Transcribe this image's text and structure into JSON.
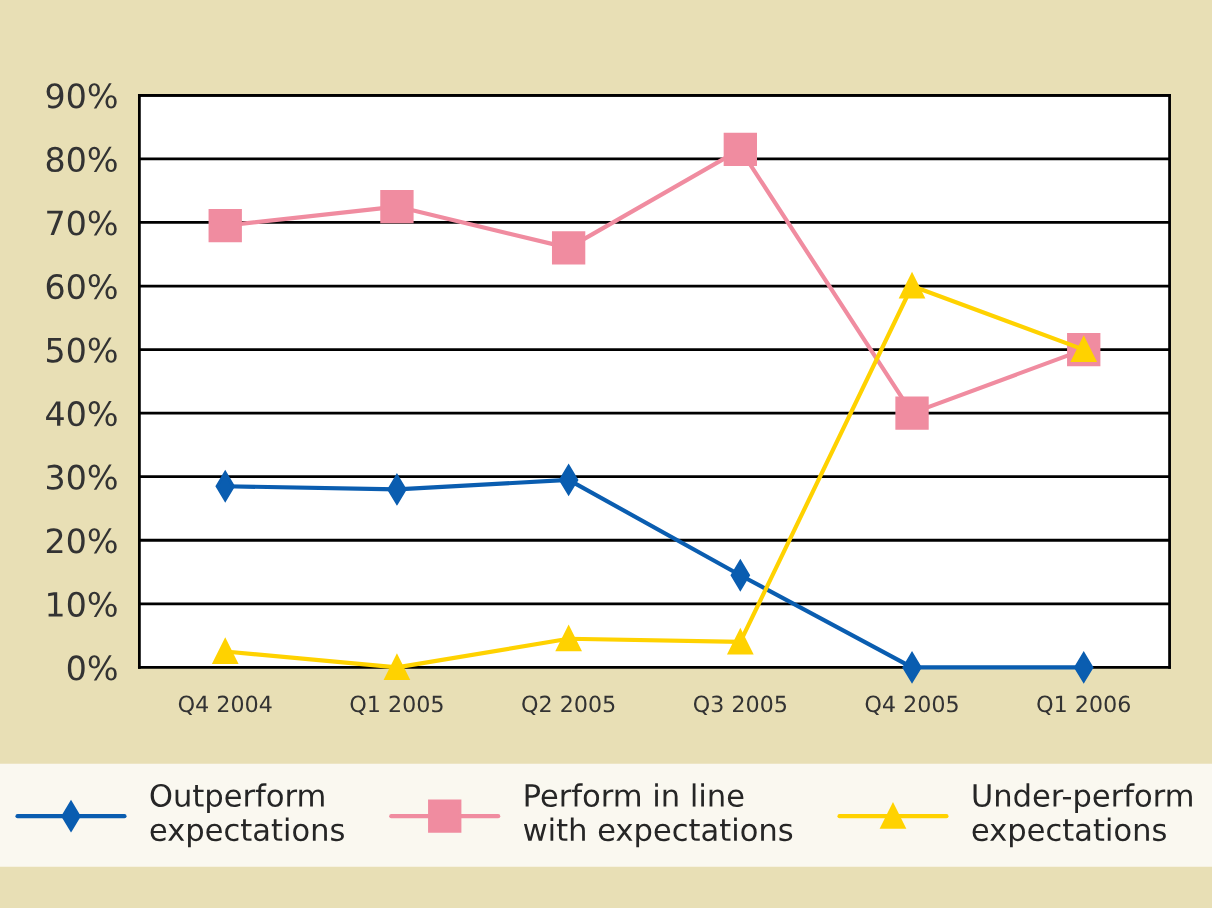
{
  "chart_data": {
    "type": "line",
    "categories": [
      "Q4 2004",
      "Q1 2005",
      "Q2 2005",
      "Q3 2005",
      "Q4 2005",
      "Q1 2006"
    ],
    "series": [
      {
        "name": "Outperform\nexpectations",
        "color": "#0a5db0",
        "marker": "diamond",
        "values": [
          28.5,
          28,
          29.5,
          14.5,
          0,
          0
        ]
      },
      {
        "name": "Perform in line\nwith expectations",
        "color": "#f08ca0",
        "marker": "square",
        "values": [
          69.5,
          72.5,
          66,
          81.5,
          40,
          50
        ]
      },
      {
        "name": "Under-perform\nexpectations",
        "color": "#ffd200",
        "marker": "triangle",
        "values": [
          2.5,
          0,
          4.5,
          4,
          60,
          50
        ]
      }
    ],
    "ylim": [
      0,
      90
    ],
    "yticks": [
      {
        "value": 0,
        "label": "0%"
      },
      {
        "value": 10,
        "label": "10%"
      },
      {
        "value": 20,
        "label": "20%"
      },
      {
        "value": 30,
        "label": "30%"
      },
      {
        "value": 40,
        "label": "40%"
      },
      {
        "value": 50,
        "label": "50%"
      },
      {
        "value": 60,
        "label": "60%"
      },
      {
        "value": 70,
        "label": "70%"
      },
      {
        "value": 80,
        "label": "80%"
      },
      {
        "value": 90,
        "label": "90%"
      }
    ],
    "grid": "y",
    "legend": "bottom",
    "line_style": "solid"
  }
}
